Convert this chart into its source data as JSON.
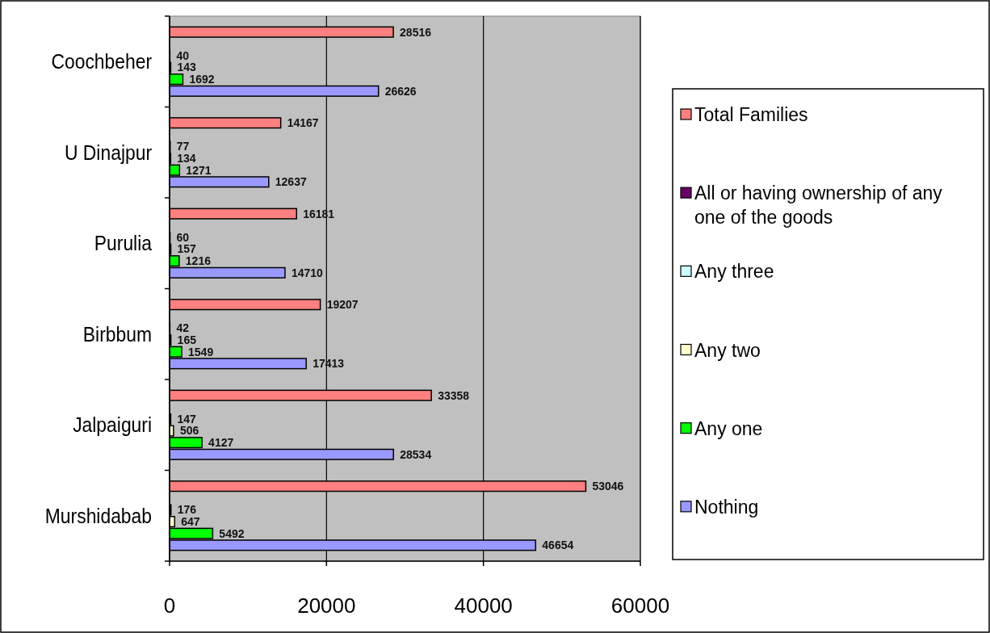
{
  "chart_data": {
    "type": "bar",
    "orientation": "horizontal",
    "categories": [
      "Coochbeher",
      "U Dinajpur",
      "Purulia",
      "Birbbum",
      "Jalpaiguri",
      "Murshidabab"
    ],
    "series": [
      {
        "name": "Total Families",
        "color": "#ff8080",
        "values": [
          28516,
          14167,
          16181,
          19207,
          33358,
          53046
        ]
      },
      {
        "name": "All or having ownership of any one of the goods",
        "color": "#660066",
        "values": [
          null,
          null,
          null,
          null,
          null,
          null
        ]
      },
      {
        "name": "Any three",
        "color": "#ccffff",
        "values": [
          40,
          77,
          60,
          42,
          147,
          176
        ]
      },
      {
        "name": "Any two",
        "color": "#ffffcc",
        "values": [
          143,
          134,
          157,
          165,
          506,
          647
        ]
      },
      {
        "name": "Any one",
        "color": "#00ff00",
        "values": [
          1692,
          1271,
          1216,
          1549,
          4127,
          5492
        ]
      },
      {
        "name": "Nothing",
        "color": "#9999ff",
        "values": [
          26626,
          12637,
          14710,
          17413,
          28534,
          46654
        ]
      }
    ],
    "xlim": [
      0,
      60000
    ],
    "xticks": [
      0,
      20000,
      40000,
      60000
    ],
    "grid": "x",
    "legend": "right",
    "data_labels": true
  }
}
